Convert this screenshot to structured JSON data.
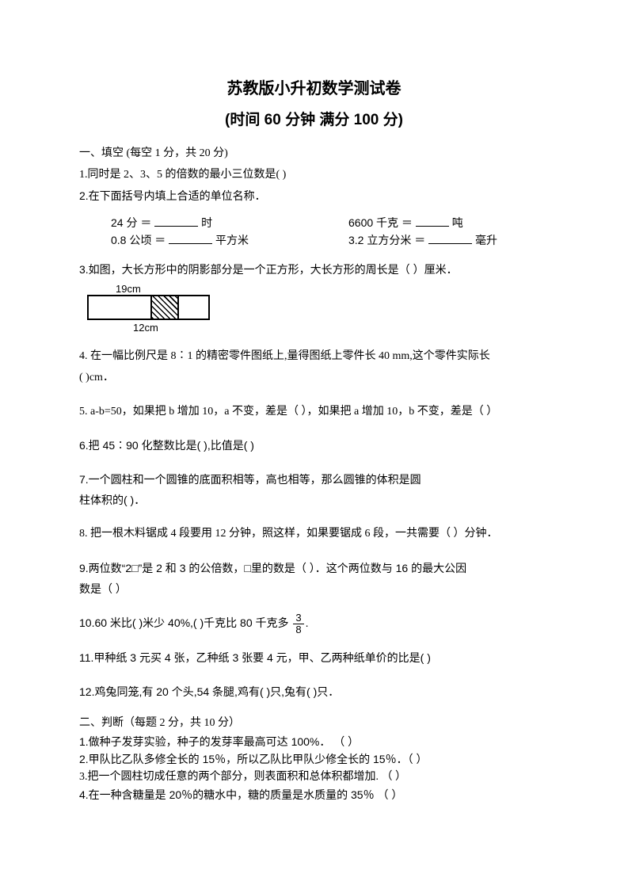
{
  "header": {
    "title": "苏教版小升初数学测试卷",
    "subtitle": "(时间 60 分钟 满分 100 分)"
  },
  "section1": {
    "heading": "一、填空  (每空 1 分，共 20 分)",
    "q1": "1.同时是 2、3、5 的倍数的最小三位数是(        )",
    "q2": "2.在下面括号内填上合适的单位名称．",
    "units": {
      "a_left": "24 分 ＝",
      "a_left_unit": "时",
      "a_right": "6600 千克 ＝",
      "a_right_unit": "吨",
      "b_left": "0.8 公顷 ＝",
      "b_left_unit": "平方米",
      "b_right": "3.2 立方分米 ＝",
      "b_right_unit": "毫升"
    },
    "q3": "3.如图，大长方形中的阴影部分是一个正方形，大长方形的周长是（          ）厘米．",
    "fig3": {
      "top_label": "19cm",
      "bottom_label": "12cm"
    },
    "q4a": "4. 在一幅比例尺是 8∶1 的精密零件图纸上,量得图纸上零件长 40 mm,这个零件实际长",
    "q4b": "(       )cm．",
    "q5": "5. a-b=50，如果把 b 增加 10，a 不变，差是（  ），如果把 a 增加 10，b 不变，差是（    ）",
    "q6": "6.把 45∶90 化整数比是(        ),比值是(        )",
    "q7a": "7.一个圆柱和一个圆锥的底面积相等，高也相等，那么圆锥的体积是圆",
    "q7b": "柱体积的(     )．",
    "q8": "8. 把一根木料锯成 4 段要用 12 分钟，照这样，如果要锯成 6 段，一共需要（      ）分钟．",
    "q9a": "9.两位数“2□”是 2 和 3 的公倍数，□里的数是（      ）．这个两位数与 16 的最大公因",
    "q9b": "数是（      ）",
    "q10_pre": "10.60 米比(      )米少 40%,(      )千克比 80 千克多",
    "q10_frac_num": "3",
    "q10_frac_den": "8",
    "q10_post": ".",
    "q11": "11.甲种纸 3 元买 4 张，乙种纸 3 张要 4 元，甲、乙两种纸单价的比是(       )",
    "q12": "12.鸡兔同笼,有 20 个头,54 条腿,鸡有(      )只,兔有(      )只．"
  },
  "section2": {
    "heading": "二、判断（每题 2 分，共 10 分）",
    "q1": "1.做种子发芽实验，种子的发芽率最高可达 100%．   （      ）",
    "q2": "2.甲队比乙队多修全长的 15％，所以乙队比甲队少修全长的 15％．（     ）",
    "q3": "3.把一个圆柱切成任意的两个部分，则表面积和总体积都增加.       （    ）",
    "q4": "4.在一种含糖量是 20％的糖水中，糖的质量是水质量的 35％    （     ）"
  }
}
